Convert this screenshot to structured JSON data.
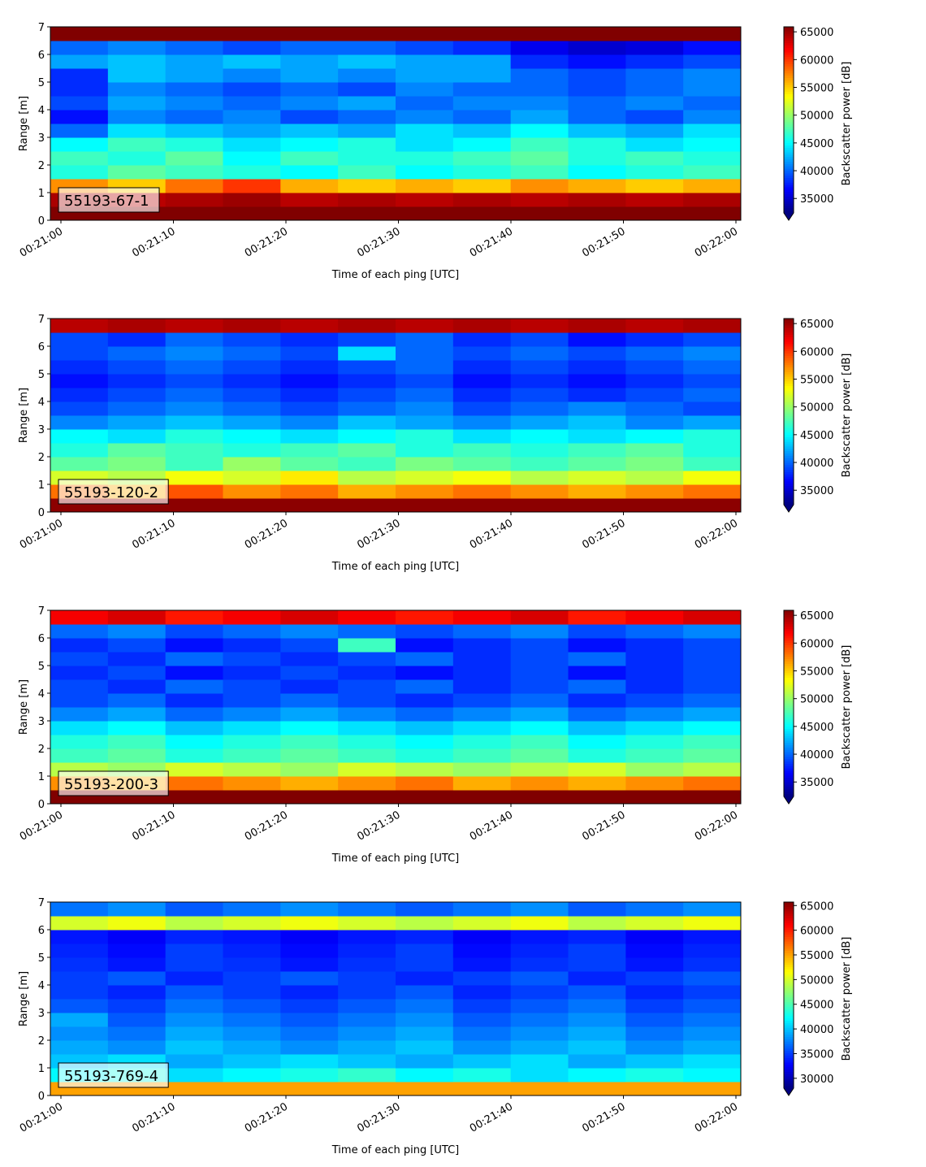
{
  "chart_data": [
    {
      "type": "heatmap",
      "annotation": "55193-67-1",
      "xlabel": "Time of each ping [UTC]",
      "ylabel": "Range [m]",
      "colorbar_label": "Backscatter power [dB]",
      "xticks": [
        "00:21:00",
        "00:21:10",
        "00:21:20",
        "00:21:30",
        "00:21:40",
        "00:21:50",
        "00:22:00"
      ],
      "ylim": [
        0,
        7
      ],
      "yticks": [
        0,
        1,
        2,
        3,
        4,
        5,
        6,
        7
      ],
      "zlim": [
        32400,
        65900
      ],
      "zticks": [
        35000,
        40000,
        45000,
        50000,
        55000,
        60000,
        65000
      ],
      "z": [
        [
          66000,
          66000,
          66000,
          66000,
          66000,
          66000,
          66000,
          66000,
          66000,
          66000,
          66000,
          66000
        ],
        [
          64500,
          64000,
          64500,
          65000,
          64000,
          64500,
          64000,
          64500,
          64000,
          64500,
          64000,
          64500
        ],
        [
          57000,
          55000,
          58000,
          60000,
          56000,
          55000,
          56000,
          55000,
          57000,
          56000,
          55000,
          56000
        ],
        [
          46000,
          48000,
          47000,
          46000,
          45000,
          47000,
          45000,
          46000,
          47000,
          45000,
          46000,
          47000
        ],
        [
          47000,
          46000,
          48000,
          45000,
          47000,
          46000,
          46000,
          47000,
          48000,
          46000,
          47000,
          46000
        ],
        [
          45000,
          47000,
          46000,
          44000,
          45000,
          46000,
          44000,
          45000,
          47000,
          46000,
          44000,
          45000
        ],
        [
          40000,
          44000,
          43000,
          42000,
          43000,
          42000,
          44000,
          43000,
          45000,
          43000,
          42000,
          44000
        ],
        [
          37000,
          41000,
          40000,
          41000,
          39000,
          40000,
          41000,
          40000,
          42000,
          40000,
          39000,
          41000
        ],
        [
          39000,
          42000,
          41000,
          40000,
          41000,
          42000,
          40000,
          41000,
          41000,
          40000,
          41000,
          40000
        ],
        [
          38000,
          41000,
          40000,
          39000,
          40000,
          39000,
          41000,
          40000,
          40000,
          39000,
          40000,
          41000
        ],
        [
          38000,
          43000,
          42000,
          41000,
          42000,
          41000,
          42000,
          42000,
          40000,
          39000,
          40000,
          41000
        ],
        [
          42000,
          43000,
          42000,
          43000,
          42000,
          43000,
          42000,
          42000,
          38000,
          37000,
          38000,
          39000
        ],
        [
          40000,
          41000,
          40000,
          39000,
          40000,
          40000,
          39000,
          38000,
          36000,
          35000,
          35500,
          37000
        ],
        [
          66000,
          66000,
          66000,
          66000,
          66000,
          66000,
          66000,
          66000,
          66000,
          66000,
          66000,
          66000
        ]
      ]
    },
    {
      "type": "heatmap",
      "annotation": "55193-120-2",
      "xlabel": "Time of each ping [UTC]",
      "ylabel": "Range [m]",
      "colorbar_label": "Backscatter power [dB]",
      "xticks": [
        "00:21:00",
        "00:21:10",
        "00:21:20",
        "00:21:30",
        "00:21:40",
        "00:21:50",
        "00:22:00"
      ],
      "ylim": [
        0,
        7
      ],
      "yticks": [
        0,
        1,
        2,
        3,
        4,
        5,
        6,
        7
      ],
      "zlim": [
        32400,
        65900
      ],
      "zticks": [
        35000,
        40000,
        45000,
        50000,
        55000,
        60000,
        65000
      ],
      "z": [
        [
          65500,
          65500,
          65500,
          65500,
          65500,
          65500,
          65500,
          65500,
          65500,
          65500,
          65500,
          65500
        ],
        [
          58000,
          56000,
          59000,
          57000,
          58000,
          56000,
          57000,
          58000,
          57000,
          56000,
          57000,
          58000
        ],
        [
          52000,
          51000,
          53000,
          52000,
          54000,
          51000,
          52000,
          53000,
          51000,
          52000,
          51000,
          53000
        ],
        [
          48000,
          49000,
          47000,
          50000,
          48000,
          47000,
          49000,
          48000,
          47000,
          48000,
          49000,
          47000
        ],
        [
          46000,
          48000,
          47000,
          46000,
          47000,
          48000,
          46000,
          47000,
          46000,
          47000,
          48000,
          46000
        ],
        [
          45000,
          44000,
          46000,
          45000,
          44000,
          45000,
          46000,
          44000,
          45000,
          44000,
          45000,
          46000
        ],
        [
          41000,
          42000,
          43000,
          42000,
          41000,
          43000,
          42000,
          41000,
          42000,
          43000,
          41000,
          42000
        ],
        [
          39000,
          40000,
          41000,
          40000,
          39000,
          40000,
          41000,
          39000,
          40000,
          41000,
          40000,
          39000
        ],
        [
          38000,
          39000,
          40000,
          39000,
          38000,
          39000,
          40000,
          38000,
          39000,
          38000,
          39000,
          40000
        ],
        [
          37000,
          38000,
          39000,
          38000,
          37000,
          38000,
          39000,
          37000,
          38000,
          37000,
          38000,
          39000
        ],
        [
          38000,
          39000,
          40000,
          39000,
          38000,
          39000,
          40000,
          38000,
          39000,
          38000,
          39000,
          40000
        ],
        [
          39000,
          40000,
          41000,
          40000,
          39000,
          44000,
          40000,
          39000,
          40000,
          39000,
          40000,
          41000
        ],
        [
          39000,
          38000,
          40000,
          39000,
          38000,
          39000,
          40000,
          38000,
          39000,
          37000,
          38000,
          39000
        ],
        [
          64000,
          64500,
          64000,
          64500,
          64000,
          64500,
          64000,
          64500,
          64000,
          64500,
          64000,
          64500
        ]
      ]
    },
    {
      "type": "heatmap",
      "annotation": "55193-200-3",
      "xlabel": "Time of each ping [UTC]",
      "ylabel": "Range [m]",
      "colorbar_label": "Backscatter power [dB]",
      "xticks": [
        "00:21:00",
        "00:21:10",
        "00:21:20",
        "00:21:30",
        "00:21:40",
        "00:21:50",
        "00:22:00"
      ],
      "ylim": [
        0,
        7
      ],
      "yticks": [
        0,
        1,
        2,
        3,
        4,
        5,
        6,
        7
      ],
      "zlim": [
        32400,
        65900
      ],
      "zticks": [
        35000,
        40000,
        45000,
        50000,
        55000,
        60000,
        65000
      ],
      "z": [
        [
          66000,
          66000,
          66000,
          66000,
          66000,
          66000,
          66000,
          66000,
          66000,
          66000,
          66000,
          66000
        ],
        [
          57000,
          56000,
          58000,
          57000,
          56000,
          57000,
          58000,
          56000,
          57000,
          56000,
          57000,
          58000
        ],
        [
          51000,
          50000,
          52000,
          51000,
          50000,
          52000,
          51000,
          50000,
          51000,
          52000,
          50000,
          51000
        ],
        [
          47000,
          48000,
          46000,
          47000,
          48000,
          47000,
          46000,
          47000,
          48000,
          46000,
          47000,
          48000
        ],
        [
          46000,
          47000,
          45000,
          46000,
          47000,
          46000,
          45000,
          46000,
          47000,
          45000,
          46000,
          47000
        ],
        [
          44000,
          45000,
          43000,
          44000,
          45000,
          44000,
          43000,
          44000,
          45000,
          43000,
          44000,
          45000
        ],
        [
          41000,
          42000,
          40000,
          41000,
          42000,
          41000,
          40000,
          41000,
          42000,
          40000,
          41000,
          42000
        ],
        [
          39000,
          40000,
          38000,
          39000,
          40000,
          39000,
          38000,
          39000,
          40000,
          38000,
          39000,
          40000
        ],
        [
          39000,
          38000,
          40000,
          39000,
          38000,
          39000,
          40000,
          38000,
          39000,
          40000,
          38000,
          39000
        ],
        [
          38000,
          39000,
          37000,
          38000,
          39000,
          38000,
          37000,
          38000,
          39000,
          37000,
          38000,
          39000
        ],
        [
          39000,
          38000,
          40000,
          39000,
          38000,
          39000,
          40000,
          38000,
          39000,
          40000,
          38000,
          39000
        ],
        [
          38000,
          39000,
          37000,
          38000,
          39000,
          47000,
          37000,
          38000,
          39000,
          37000,
          38000,
          39000
        ],
        [
          40000,
          41000,
          39000,
          40000,
          41000,
          40000,
          39000,
          40000,
          41000,
          39000,
          40000,
          41000
        ],
        [
          62000,
          63000,
          61000,
          62000,
          63000,
          62000,
          61000,
          62000,
          63000,
          61000,
          62000,
          63000
        ]
      ]
    },
    {
      "type": "heatmap",
      "annotation": "55193-769-4",
      "xlabel": "Time of each ping [UTC]",
      "ylabel": "Range [m]",
      "colorbar_label": "Backscatter power [dB]",
      "xticks": [
        "00:21:00",
        "00:21:10",
        "00:21:20",
        "00:21:30",
        "00:21:40",
        "00:21:50",
        "00:22:00"
      ],
      "ylim": [
        0,
        7
      ],
      "yticks": [
        0,
        1,
        2,
        3,
        4,
        5,
        6,
        7
      ],
      "zlim": [
        28000,
        65700
      ],
      "zticks": [
        30000,
        35000,
        40000,
        45000,
        50000,
        55000,
        60000,
        65000
      ],
      "z": [
        [
          55000,
          55000,
          55000,
          55000,
          55000,
          55000,
          55000,
          55000,
          55000,
          55000,
          55000,
          55000
        ],
        [
          42000,
          43000,
          41000,
          42000,
          43000,
          44000,
          42000,
          43000,
          41000,
          42000,
          43000,
          42000
        ],
        [
          40000,
          41000,
          39000,
          40000,
          41000,
          40000,
          39000,
          40000,
          41000,
          39000,
          40000,
          41000
        ],
        [
          39000,
          38000,
          40000,
          39000,
          38000,
          39000,
          40000,
          38000,
          39000,
          40000,
          38000,
          39000
        ],
        [
          38000,
          37000,
          39000,
          38000,
          37000,
          38000,
          39000,
          37000,
          38000,
          39000,
          37000,
          38000
        ],
        [
          39000,
          36000,
          38000,
          37000,
          36000,
          37000,
          38000,
          36000,
          37000,
          38000,
          36000,
          37000
        ],
        [
          36000,
          35000,
          37000,
          36000,
          35000,
          36000,
          37000,
          35000,
          36000,
          37000,
          35000,
          36000
        ],
        [
          35000,
          34000,
          36000,
          35000,
          34000,
          35000,
          36000,
          34000,
          35000,
          36000,
          34000,
          35000
        ],
        [
          35000,
          36000,
          34000,
          35000,
          36000,
          35000,
          34000,
          35000,
          36000,
          34000,
          35000,
          36000
        ],
        [
          34500,
          33500,
          35000,
          34500,
          33500,
          34500,
          35000,
          33500,
          34500,
          35000,
          33500,
          34500
        ],
        [
          34000,
          33000,
          35000,
          34000,
          33000,
          34000,
          35000,
          33000,
          34000,
          35000,
          33000,
          34000
        ],
        [
          33500,
          32500,
          34000,
          33500,
          32500,
          33500,
          34000,
          32500,
          33500,
          34000,
          32500,
          33500
        ],
        [
          50000,
          51000,
          49000,
          50000,
          51000,
          50000,
          49000,
          50000,
          51000,
          49000,
          50000,
          51000
        ],
        [
          37000,
          38000,
          36000,
          37000,
          38000,
          37000,
          36000,
          37000,
          38000,
          36000,
          37000,
          38000
        ]
      ]
    }
  ]
}
